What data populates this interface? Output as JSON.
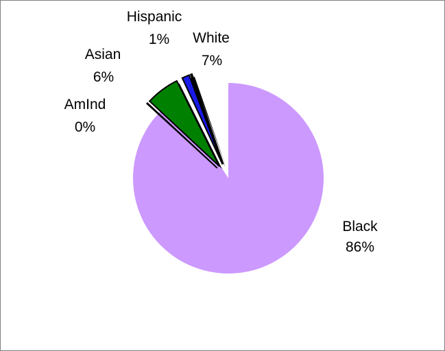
{
  "chart_data": {
    "type": "pie",
    "title": "",
    "slices": [
      {
        "name": "Black",
        "value": 86,
        "label_value": "86%",
        "color": "#cc99ff",
        "exploded": false
      },
      {
        "name": "White",
        "value": 7,
        "label_value": "7%",
        "color": "#1a1ae6",
        "exploded": true
      },
      {
        "name": "Hispanic",
        "value": 1,
        "label_value": "1%",
        "color": "#1a1ae6",
        "exploded": true
      },
      {
        "name": "Asian",
        "value": 6,
        "label_value": "6%",
        "color": "#008000",
        "exploded": true
      },
      {
        "name": "AmInd",
        "value": 0,
        "label_value": "0%",
        "color": "#008000",
        "exploded": true
      }
    ],
    "legend": "none",
    "border_color": "#808080"
  }
}
